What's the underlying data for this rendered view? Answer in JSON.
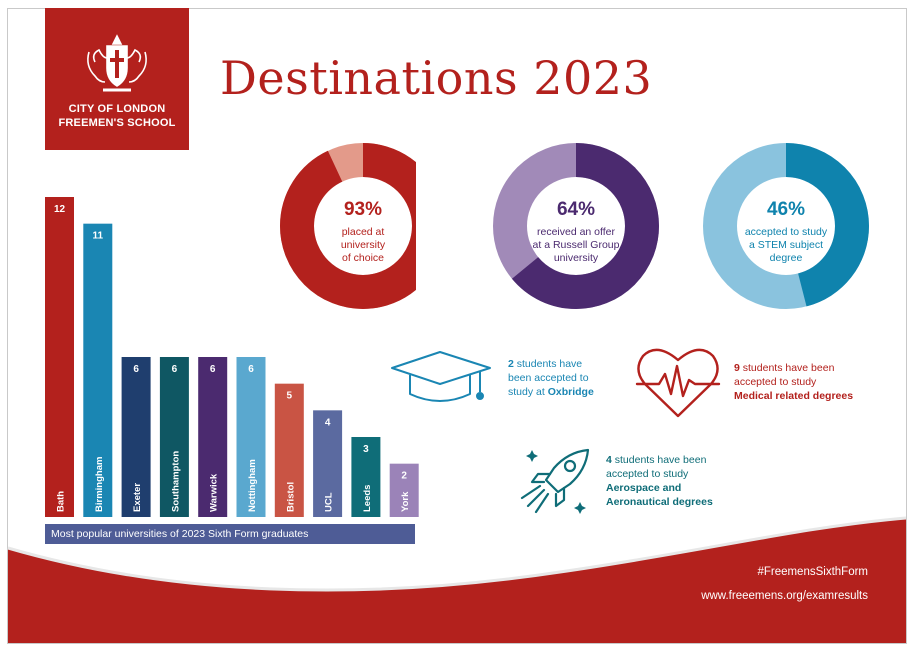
{
  "colors": {
    "brand_red": "#b3211d",
    "purple": "#4b2a6f",
    "teal": "#0f83ad",
    "light_blue": "#8ac3de",
    "caption_blue": "#4e5c96"
  },
  "logo": {
    "line1": "CITY OF LONDON",
    "line2": "FREEMEN'S SCHOOL",
    "icon": "coat-of-arms-icon"
  },
  "title": "Destinations 2023",
  "donuts": [
    {
      "pct": "93%",
      "value": 0.93,
      "lines": [
        "placed at",
        "university",
        "of choice"
      ],
      "main_color": "#b3211d",
      "rest_color": "#e39a8a",
      "text_color": "#b3211d"
    },
    {
      "pct": "64%",
      "value": 0.64,
      "lines": [
        "received an offer",
        "at a Russell Group",
        "university"
      ],
      "main_color": "#4b2a6f",
      "rest_color": "#a18ab8",
      "text_color": "#4b2a6f"
    },
    {
      "pct": "46%",
      "value": 0.46,
      "lines": [
        "accepted to study",
        "a STEM subject",
        "degree"
      ],
      "main_color": "#0f83ad",
      "rest_color": "#8ac3de",
      "text_color": "#0f83ad"
    }
  ],
  "chart_data": {
    "type": "bar",
    "categories": [
      "Bath",
      "Birmingham",
      "Exeter",
      "Southampton",
      "Warwick",
      "Nottingham",
      "Bristol",
      "UCL",
      "Leeds",
      "York"
    ],
    "values": [
      12,
      11,
      6,
      6,
      6,
      6,
      5,
      4,
      3,
      2
    ],
    "colors": [
      "#b3211d",
      "#1a86b3",
      "#1f3e6e",
      "#0f5763",
      "#4b2a6f",
      "#5aa8cf",
      "#c95444",
      "#5b6aa0",
      "#0f6d78",
      "#9b83b8"
    ],
    "title": "Most popular universities of 2023 Sixth Form graduates",
    "xlabel": "",
    "ylabel": "",
    "ylim": [
      0,
      12
    ]
  },
  "stats": {
    "oxbridge": {
      "num": "2",
      "line1_rest": " students have",
      "line2": "been accepted to",
      "line3_pre": "study at ",
      "line3_bold": "Oxbridge",
      "icon": "graduation-cap-icon"
    },
    "medical": {
      "num": "9",
      "line1_rest": " students have been",
      "line2": "accepted to study",
      "line3_bold": "Medical related degrees",
      "icon": "heartbeat-icon"
    },
    "aero": {
      "num": "4",
      "line1_rest": " students have been",
      "line2": "accepted to study",
      "line3_bold": "Aerospace and",
      "line4_bold": "Aeronautical degrees",
      "icon": "rocket-icon"
    }
  },
  "footer": {
    "hashtag": "#FreemensSixthForm",
    "url": "www.freeemens.org/examresults"
  }
}
